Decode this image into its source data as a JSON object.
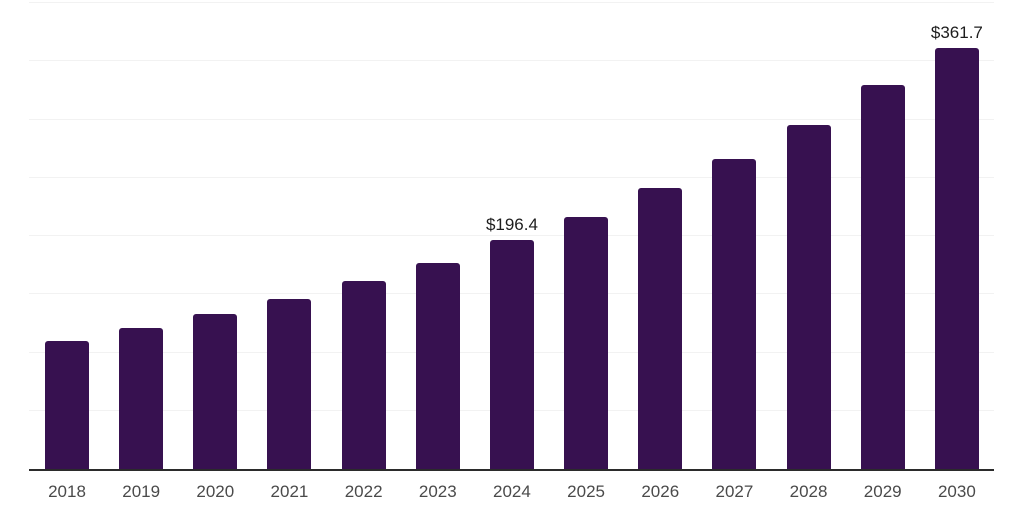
{
  "chart_data": {
    "type": "bar",
    "title": "",
    "xlabel": "",
    "ylabel": "",
    "categories": [
      "2018",
      "2019",
      "2020",
      "2021",
      "2022",
      "2023",
      "2024",
      "2025",
      "2026",
      "2027",
      "2028",
      "2029",
      "2030"
    ],
    "values": [
      109.9,
      120.8,
      133.3,
      146.2,
      161.0,
      177.2,
      196.4,
      216.6,
      241.1,
      265.9,
      295.0,
      329.2,
      361.7
    ],
    "data_labels": [
      null,
      null,
      null,
      null,
      null,
      null,
      "$196.4",
      null,
      null,
      null,
      null,
      null,
      "$361.7"
    ],
    "ylim": [
      0,
      400
    ],
    "gridline_step": 50,
    "grid": "horizontal-only",
    "legend": "none",
    "y_axis_tick_labels_visible": false
  },
  "style": {
    "bar_color": "#371150",
    "gridline_color": "#f2f2f2",
    "axis_line_color": "#2b2b2b",
    "data_label_color": "#1d1d1d",
    "tick_label_color": "#4a4a4a",
    "background_color": "#ffffff"
  }
}
